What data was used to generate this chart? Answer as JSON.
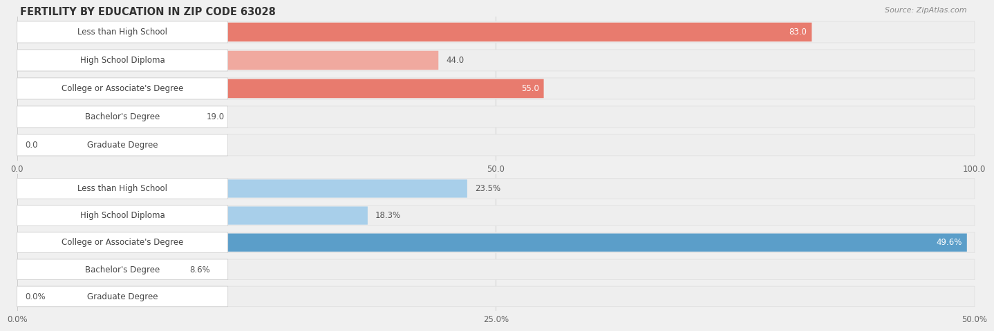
{
  "title": "FERTILITY BY EDUCATION IN ZIP CODE 63028",
  "source": "Source: ZipAtlas.com",
  "top_chart": {
    "categories": [
      "Less than High School",
      "High School Diploma",
      "College or Associate's Degree",
      "Bachelor's Degree",
      "Graduate Degree"
    ],
    "values": [
      83.0,
      44.0,
      55.0,
      19.0,
      0.0
    ],
    "value_labels": [
      "83.0",
      "44.0",
      "55.0",
      "19.0",
      "0.0"
    ],
    "xlim": [
      0,
      100
    ],
    "xticks": [
      0.0,
      50.0,
      100.0
    ],
    "xtick_labels": [
      "0.0",
      "50.0",
      "100.0"
    ],
    "bar_color_strong": "#E87B6E",
    "bar_color_light": "#F0A99F",
    "threshold_inside": 55
  },
  "bottom_chart": {
    "categories": [
      "Less than High School",
      "High School Diploma",
      "College or Associate's Degree",
      "Bachelor's Degree",
      "Graduate Degree"
    ],
    "values": [
      23.5,
      18.3,
      49.6,
      8.6,
      0.0
    ],
    "value_labels": [
      "23.5%",
      "18.3%",
      "49.6%",
      "8.6%",
      "0.0%"
    ],
    "xlim": [
      0,
      50
    ],
    "xticks": [
      0.0,
      25.0,
      50.0
    ],
    "xtick_labels": [
      "0.0%",
      "25.0%",
      "50.0%"
    ],
    "bar_color_strong": "#5B9EC9",
    "bar_color_light": "#A8CFEA",
    "threshold_inside": 35
  },
  "bg_color": "#f0f0f0",
  "bar_bg_color": "#ffffff",
  "bar_row_bg": "#f7f7f7",
  "label_font_size": 8.5,
  "value_font_size": 8.5,
  "title_font_size": 10.5,
  "source_font_size": 8.0
}
